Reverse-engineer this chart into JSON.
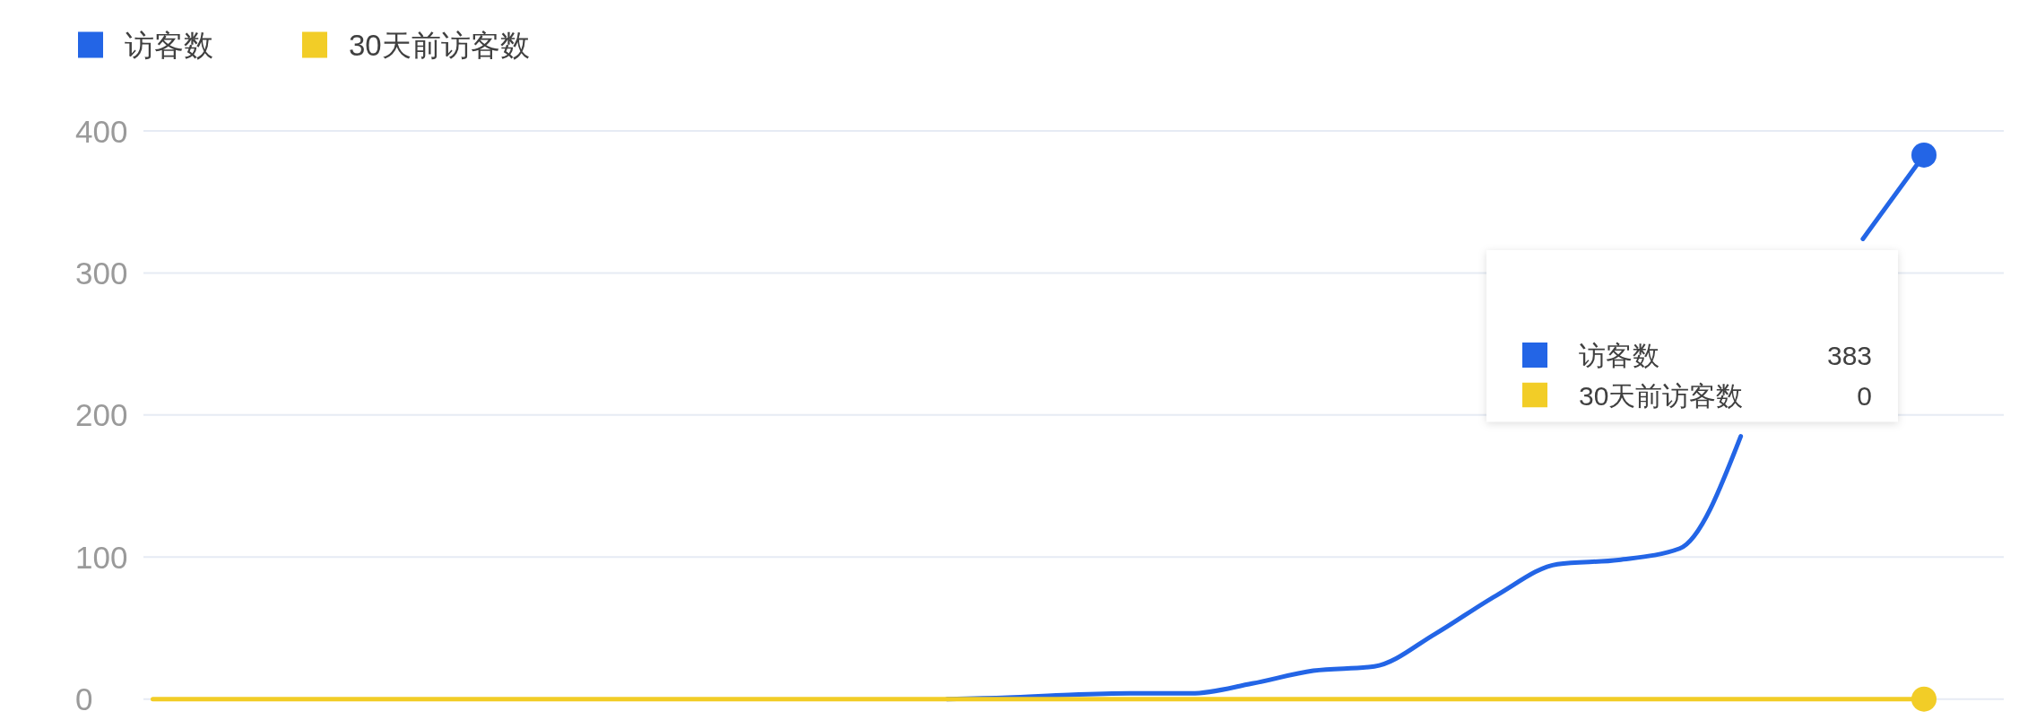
{
  "chart_data": {
    "type": "line",
    "categories": [
      null,
      null,
      null,
      null,
      null,
      null,
      null,
      null,
      null,
      null,
      null,
      null,
      null,
      null,
      null,
      null,
      null,
      null,
      null,
      null,
      null,
      null,
      null,
      null,
      null,
      null,
      null,
      null,
      null,
      null
    ],
    "series": [
      {
        "name": "访客数",
        "color": "#2365e6",
        "values": [
          null,
          null,
          null,
          null,
          null,
          null,
          null,
          null,
          null,
          null,
          null,
          null,
          null,
          0,
          1,
          3,
          4,
          4,
          11,
          20,
          23,
          46,
          73,
          95,
          98,
          106,
          185,
          null,
          324,
          383
        ]
      },
      {
        "name": "30天前访客数",
        "color": "#f2cd27",
        "values": [
          0,
          0,
          0,
          0,
          0,
          0,
          0,
          0,
          0,
          0,
          0,
          0,
          0,
          0,
          0,
          0,
          0,
          0,
          0,
          0,
          0,
          0,
          0,
          0,
          0,
          0,
          0,
          0,
          0,
          0
        ]
      }
    ],
    "ylim": [
      0,
      400
    ],
    "yticks": [
      0,
      100,
      200,
      300,
      400
    ],
    "grid": "y",
    "legend": "top left",
    "tick_labels": "y",
    "annotations": [
      "访客数 383",
      "30天前访客数 0"
    ]
  }
}
